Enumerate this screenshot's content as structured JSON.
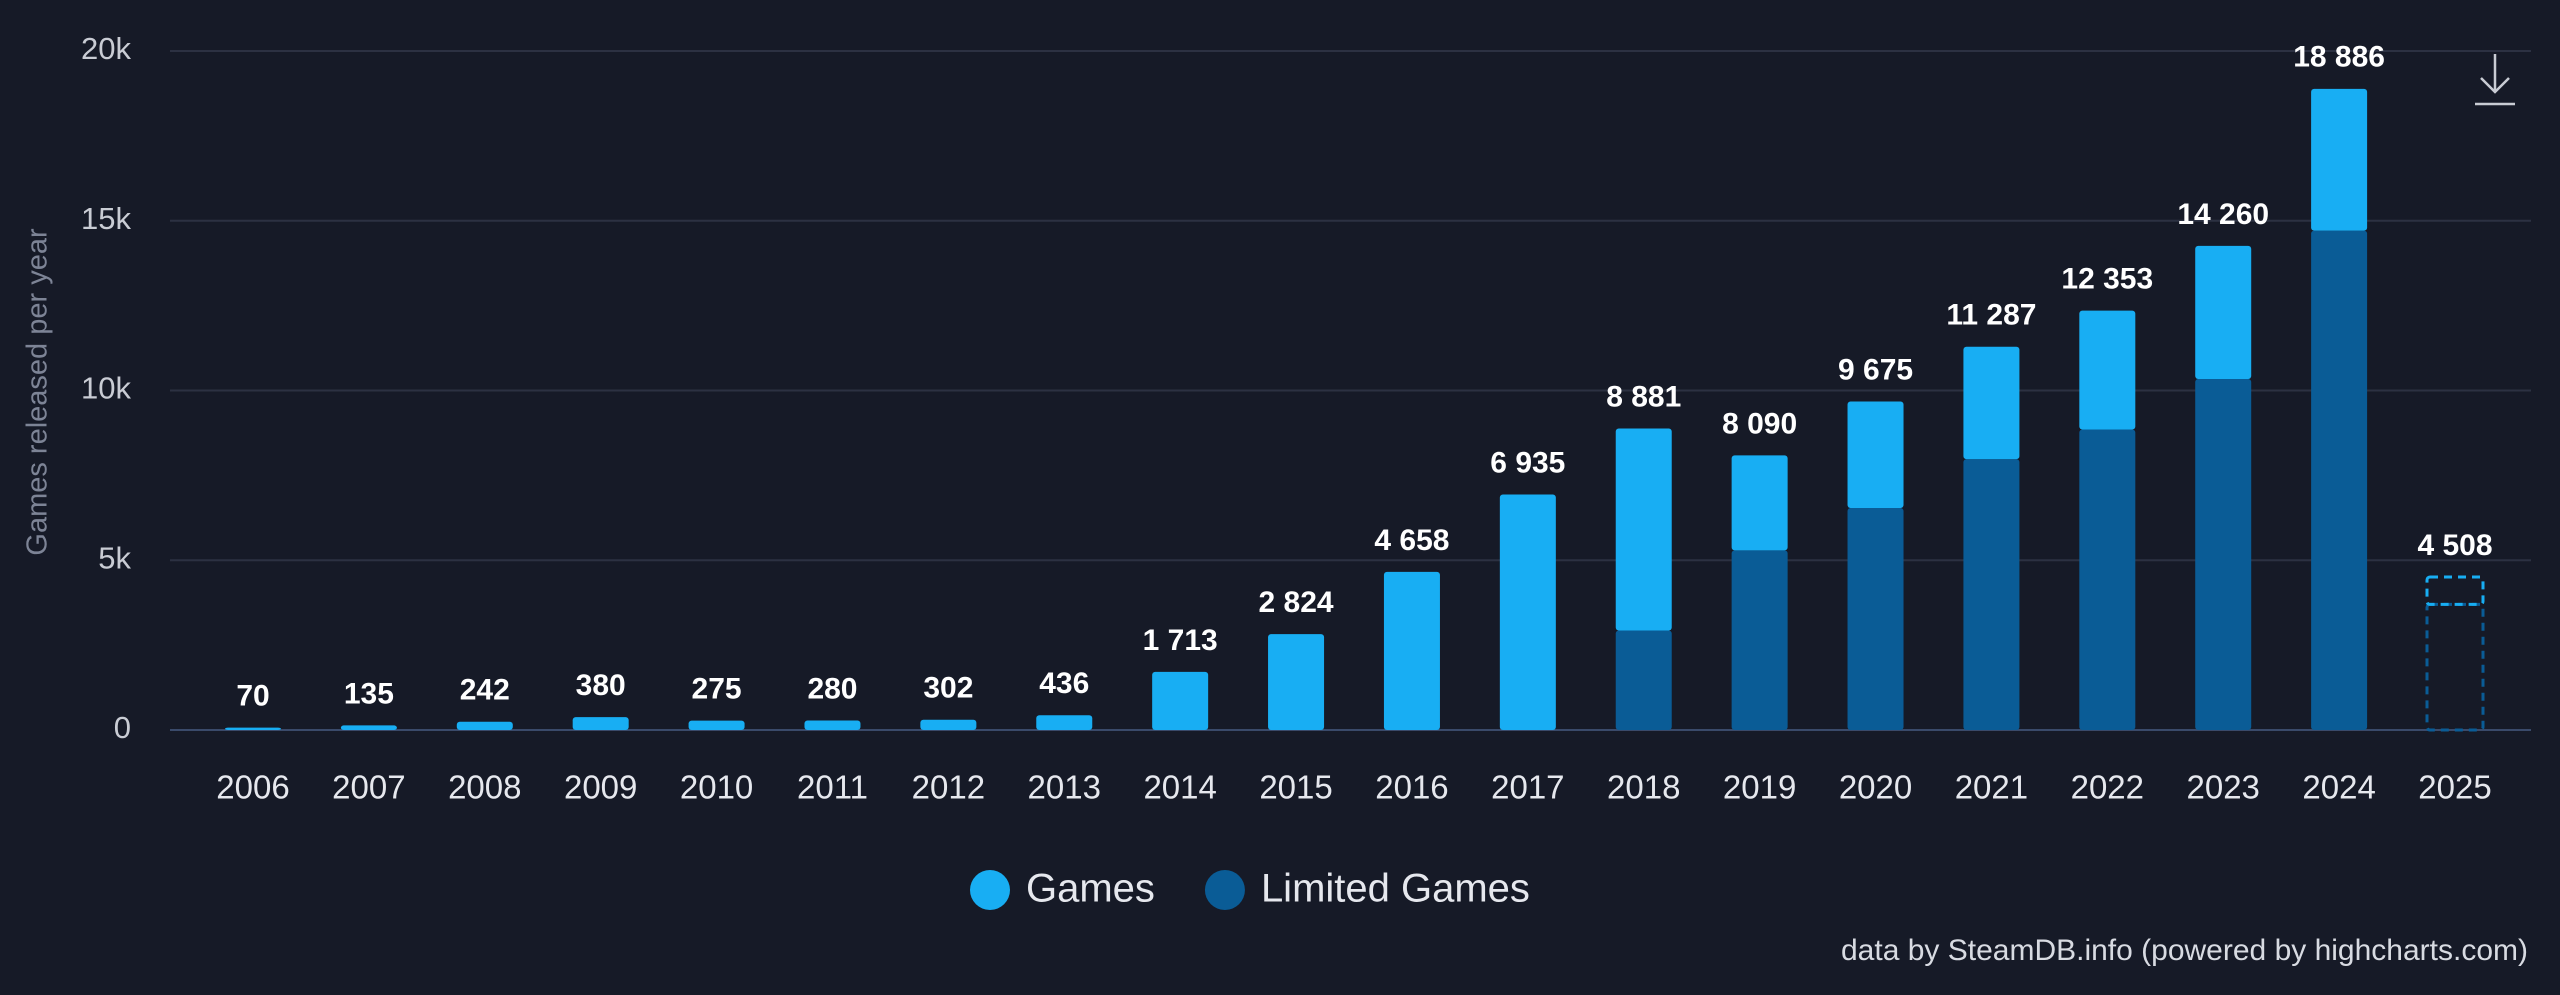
{
  "chart_data": {
    "type": "stacked_bar",
    "y_axis_label": "Games released per year",
    "categories": [
      "2006",
      "2007",
      "2008",
      "2009",
      "2010",
      "2011",
      "2012",
      "2013",
      "2014",
      "2015",
      "2016",
      "2017",
      "2018",
      "2019",
      "2020",
      "2021",
      "2022",
      "2023",
      "2024",
      "2025"
    ],
    "series": [
      {
        "name": "Limited Games",
        "color": "#0a5c96",
        "values": [
          0,
          0,
          0,
          0,
          0,
          0,
          0,
          0,
          0,
          0,
          0,
          0,
          2930,
          5290,
          6540,
          7980,
          8850,
          10340,
          14710,
          3700
        ]
      },
      {
        "name": "Games",
        "color": "#18aef3",
        "values": [
          70,
          135,
          242,
          380,
          275,
          280,
          302,
          436,
          1713,
          2824,
          4658,
          6935,
          5951,
          2800,
          3135,
          3307,
          3503,
          3920,
          4176,
          808
        ]
      }
    ],
    "legend_order": [
      1,
      0
    ],
    "totals": [
      70,
      135,
      242,
      380,
      275,
      280,
      302,
      436,
      1713,
      2824,
      4658,
      6935,
      8881,
      8090,
      9675,
      11287,
      12353,
      14260,
      18886,
      4508
    ],
    "total_labels": [
      "70",
      "135",
      "242",
      "380",
      "275",
      "280",
      "302",
      "436",
      "1 713",
      "2 824",
      "4 658",
      "6 935",
      "8 881",
      "8 090",
      "9 675",
      "11 287",
      "12 353",
      "14 260",
      "18 886",
      "4 508"
    ],
    "dashed_categories": [
      "2025"
    ],
    "ylim": [
      0,
      20000
    ],
    "yticks": [
      0,
      {
        "value": 5000,
        "label": "5k"
      },
      {
        "value": 10000,
        "label": "10k"
      },
      {
        "value": 15000,
        "label": "15k"
      },
      {
        "value": 20000,
        "label": "20k"
      }
    ],
    "grid": true,
    "credit": "data by SteamDB.info (powered by highcharts.com)"
  }
}
